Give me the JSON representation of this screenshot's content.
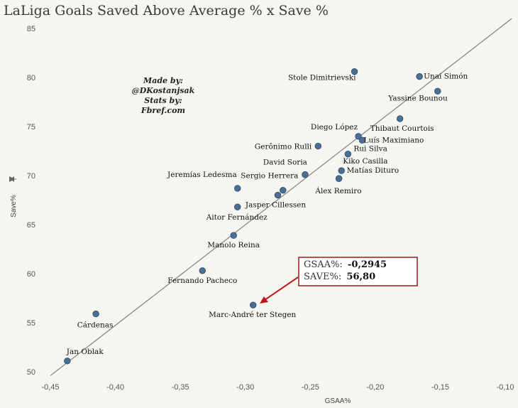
{
  "chart_data": {
    "type": "scatter",
    "title": "LaLiga Goals Saved Above Average % x Save %",
    "xlabel": "GSAA%",
    "ylabel": "Save%",
    "ylabel_icon": "pin-icon",
    "xlim": [
      -0.45,
      -0.1
    ],
    "ylim": [
      50,
      86
    ],
    "xticks": [
      -0.45,
      -0.4,
      -0.35,
      -0.3,
      -0.25,
      -0.2,
      -0.15,
      -0.1
    ],
    "xtick_labels": [
      "-0,45",
      "-0,40",
      "-0,35",
      "-0,30",
      "-0,25",
      "-0,20",
      "-0,15",
      "-0,10"
    ],
    "yticks": [
      50,
      55,
      60,
      65,
      70,
      75,
      80,
      85
    ],
    "ytick_labels": [
      "50",
      "55",
      "60",
      "65",
      "70",
      "75",
      "80",
      "85"
    ],
    "trendline": {
      "x": [
        -0.45,
        -0.095
      ],
      "y": [
        49.6,
        86.0
      ]
    },
    "point_color": "#4a6f96",
    "trend_color": "#8a8a8a",
    "points": [
      {
        "name": "Stole Dimitrievski",
        "x": -0.216,
        "y": 80.6,
        "anchor": "end",
        "dx": 2,
        "dy": 12
      },
      {
        "name": "Unai Simón",
        "x": -0.166,
        "y": 80.1,
        "anchor": "start",
        "dx": 6,
        "dy": 3
      },
      {
        "name": "Yassine Bounou",
        "x": -0.152,
        "y": 78.6,
        "anchor": "end",
        "dx": 14,
        "dy": 13
      },
      {
        "name": "Thibaut Courtois",
        "x": -0.181,
        "y": 75.8,
        "anchor": "middle",
        "dx": 3,
        "dy": 17
      },
      {
        "name": "Diego López",
        "x": -0.213,
        "y": 74.0,
        "anchor": "end",
        "dx": -1,
        "dy": -10
      },
      {
        "name": "Luís Maximiano",
        "x": -0.21,
        "y": 73.6,
        "anchor": "start",
        "dx": 2,
        "dy": 3
      },
      {
        "name": "Rui Silva",
        "x": -0.221,
        "y": 72.2,
        "anchor": "start",
        "dx": 8,
        "dy": -4
      },
      {
        "name": "Gerônimo Rulli",
        "x": -0.244,
        "y": 73.0,
        "anchor": "end",
        "dx": -9,
        "dy": 4
      },
      {
        "name": "Kiko Casilla",
        "x": -0.226,
        "y": 70.5,
        "anchor": "start",
        "dx": 2,
        "dy": -10
      },
      {
        "name": "David Soria",
        "x": -0.254,
        "y": 70.1,
        "anchor": "end",
        "dx": 3,
        "dy": -14
      },
      {
        "name": "Matías Dituro",
        "x": -0.228,
        "y": 69.7,
        "anchor": "start",
        "dx": 11,
        "dy": -8
      },
      {
        "name": "Sergio Herrera",
        "x": -0.271,
        "y": 68.5,
        "anchor": "middle",
        "dx": -19,
        "dy": -17
      },
      {
        "name": "Jeremías Ledesma",
        "x": -0.306,
        "y": 68.7,
        "anchor": "end",
        "dx": -1,
        "dy": -16
      },
      {
        "name": "Álex Remiro",
        "x": -0.228,
        "y": 69.7,
        "anchor": "end",
        "dx": 32,
        "dy": 21
      },
      {
        "name": "Jasper Cillessen",
        "x": -0.275,
        "y": 68.0,
        "anchor": "middle",
        "dx": -3,
        "dy": 17
      },
      {
        "name": "Aitor Fernández",
        "x": -0.306,
        "y": 66.8,
        "anchor": "middle",
        "dx": -1,
        "dy": 18
      },
      {
        "name": "Manolo Reina",
        "x": -0.309,
        "y": 63.9,
        "anchor": "middle",
        "dx": 0,
        "dy": 17
      },
      {
        "name": "Fernando Pacheco",
        "x": -0.333,
        "y": 60.3,
        "anchor": "middle",
        "dx": 0,
        "dy": 17
      },
      {
        "name": "Marc-André ter Stegen",
        "x": -0.294,
        "y": 56.8,
        "anchor": "middle",
        "dx": -1,
        "dy": 17
      },
      {
        "name": "Cárdenas",
        "x": -0.415,
        "y": 55.9,
        "anchor": "middle",
        "dx": -1,
        "dy": 19
      },
      {
        "name": "Jan Oblak",
        "x": -0.437,
        "y": 51.1,
        "anchor": "start",
        "dx": -1,
        "dy": -10
      }
    ],
    "annotations": [
      {
        "text": "Made by:"
      },
      {
        "text": "@DKostanjsak"
      },
      {
        "text": "Stats by:"
      },
      {
        "text": "Fbref.com"
      }
    ],
    "callout": {
      "target": "Marc-André ter Stegen",
      "gsaa_label": "GSAA%:",
      "gsaa_value": "-0,2945",
      "save_label": "SAVE%:",
      "save_value": "56,80",
      "border_color": "#9b1c1c",
      "arrow_color": "#c01818"
    }
  }
}
